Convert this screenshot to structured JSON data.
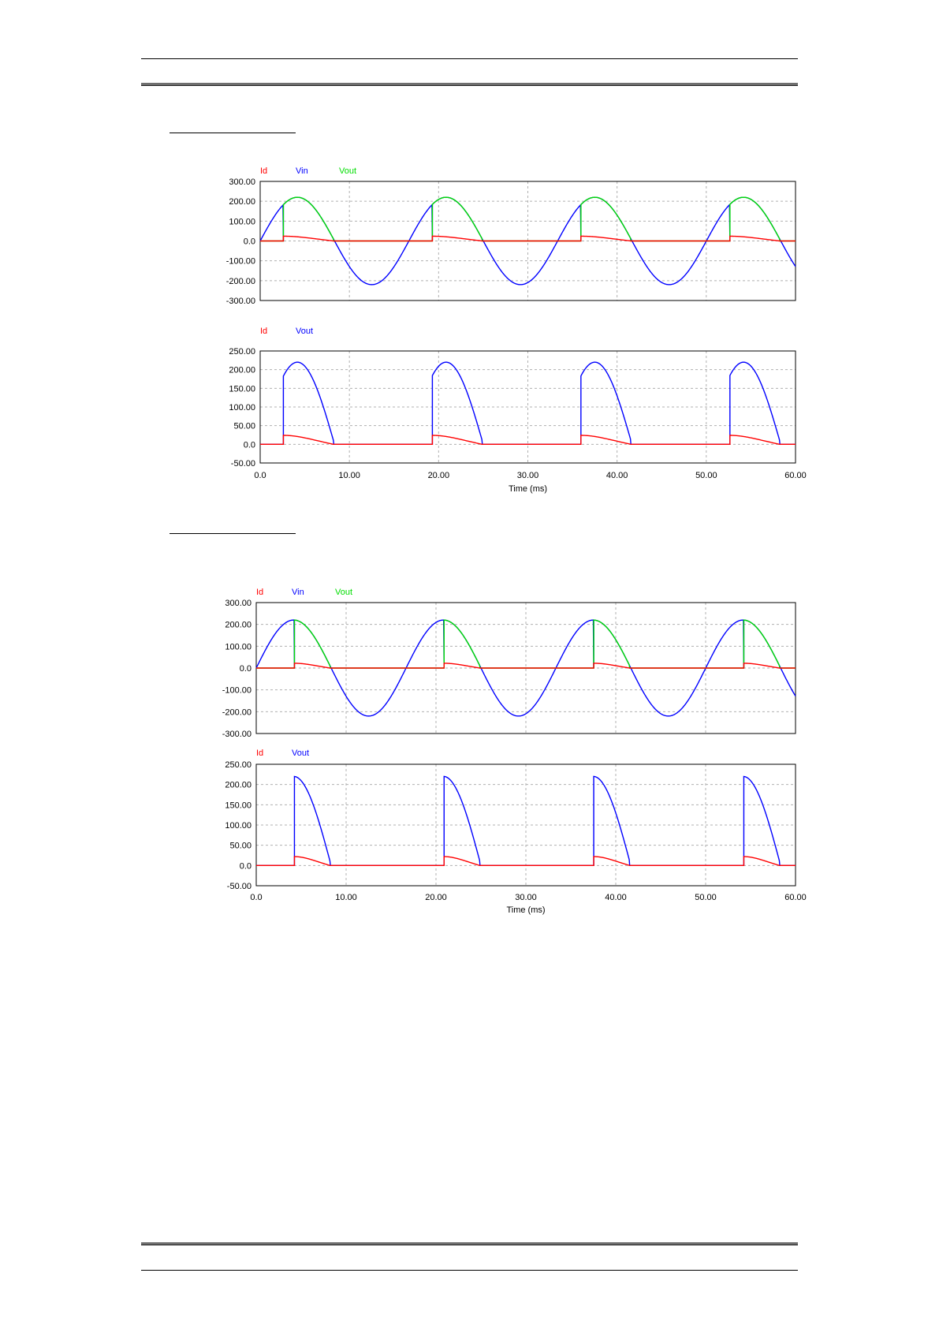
{
  "page": {
    "figures": [
      {
        "panels": [
          {
            "legend": [
              {
                "name": "Id",
                "color": "#ff0000"
              },
              {
                "name": "Vin",
                "color": "#0000ff"
              },
              {
                "name": "Vout",
                "color": "#00dd00"
              }
            ],
            "yticks": [
              "300.00",
              "200.00",
              "100.00",
              "0.0",
              "-100.00",
              "-200.00",
              "-300.00"
            ]
          },
          {
            "legend": [
              {
                "name": "Id",
                "color": "#ff0000"
              },
              {
                "name": "Vout",
                "color": "#0000ff"
              }
            ],
            "yticks": [
              "250.00",
              "200.00",
              "150.00",
              "100.00",
              "50.00",
              "0.0",
              "-50.00"
            ]
          }
        ],
        "xticks": [
          "0.0",
          "10.00",
          "20.00",
          "30.00",
          "40.00",
          "50.00",
          "60.00"
        ],
        "xlabel": "Time (ms)"
      },
      {
        "panels": [
          {
            "legend": [
              {
                "name": "Id",
                "color": "#ff0000"
              },
              {
                "name": "Vin",
                "color": "#0000ff"
              },
              {
                "name": "Vout",
                "color": "#00dd00"
              }
            ],
            "yticks": [
              "300.00",
              "200.00",
              "100.00",
              "0.0",
              "-100.00",
              "-200.00",
              "-300.00"
            ]
          },
          {
            "legend": [
              {
                "name": "Id",
                "color": "#ff0000"
              },
              {
                "name": "Vout",
                "color": "#0000ff"
              }
            ],
            "yticks": [
              "250.00",
              "200.00",
              "150.00",
              "100.00",
              "50.00",
              "0.0",
              "-50.00"
            ]
          }
        ],
        "xticks": [
          "0.0",
          "10.00",
          "20.00",
          "30.00",
          "40.00",
          "50.00",
          "60.00"
        ],
        "xlabel": "Time (ms)"
      }
    ]
  },
  "chart_data": [
    {
      "type": "line",
      "description_of_signal": "sinusoidal Vin with half-wave controlled rectifier",
      "x_unit_label": "Time (ms)",
      "xlim": [
        0,
        60
      ],
      "vin_amplitude": 220,
      "period_ms": 16.67,
      "firing_delay_ms": 2.6,
      "conduction_end_ms": 8.2,
      "id_peak": 24,
      "panels": [
        {
          "series": [
            {
              "name": "Id"
            },
            {
              "name": "Vin"
            },
            {
              "name": "Vout"
            }
          ],
          "ylim": [
            -300,
            300
          ]
        },
        {
          "series": [
            {
              "name": "Id"
            },
            {
              "name": "Vout"
            }
          ],
          "ylim": [
            -50,
            250
          ]
        }
      ]
    },
    {
      "type": "line",
      "x_unit_label": "Time (ms)",
      "xlim": [
        0,
        60
      ],
      "vin_amplitude": 220,
      "period_ms": 16.67,
      "firing_delay_ms": 4.2,
      "conduction_end_ms": 8.2,
      "id_peak": 22,
      "panels": [
        {
          "series": [
            {
              "name": "Id"
            },
            {
              "name": "Vin"
            },
            {
              "name": "Vout"
            }
          ],
          "ylim": [
            -300,
            300
          ]
        },
        {
          "series": [
            {
              "name": "Id"
            },
            {
              "name": "Vout"
            }
          ],
          "ylim": [
            -50,
            250
          ]
        }
      ]
    }
  ]
}
